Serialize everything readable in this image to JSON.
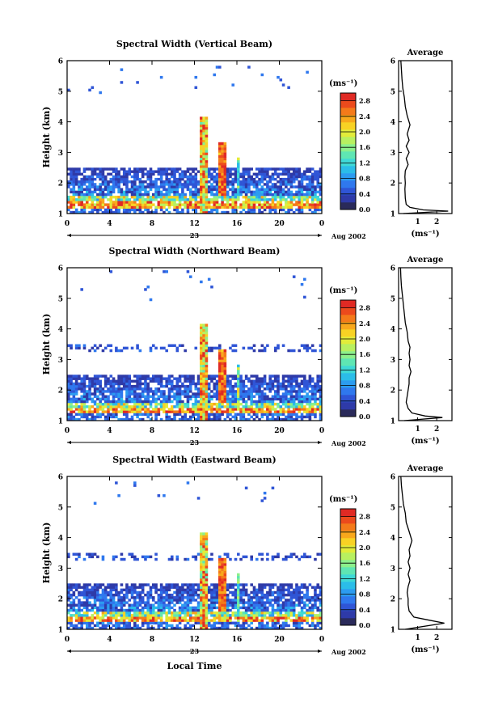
{
  "panels": [
    {
      "title": "Spectral Width (Vertical Beam)",
      "side_title": "Average",
      "xlabel": "",
      "profile": [
        [
          0.25,
          1.0
        ],
        [
          2.6,
          1.08
        ],
        [
          1.3,
          1.12
        ],
        [
          0.6,
          1.2
        ],
        [
          0.4,
          1.3
        ],
        [
          0.35,
          1.5
        ],
        [
          0.33,
          1.8
        ],
        [
          0.35,
          2.0
        ],
        [
          0.33,
          2.2
        ],
        [
          0.35,
          2.4
        ],
        [
          0.5,
          2.6
        ],
        [
          0.4,
          2.8
        ],
        [
          0.55,
          3.0
        ],
        [
          0.4,
          3.2
        ],
        [
          0.55,
          3.4
        ],
        [
          0.45,
          3.6
        ],
        [
          0.6,
          3.9
        ],
        [
          0.45,
          4.2
        ],
        [
          0.35,
          4.5
        ],
        [
          0.3,
          4.8
        ],
        [
          0.22,
          5.1
        ],
        [
          0.18,
          5.4
        ],
        [
          0.15,
          5.7
        ],
        [
          0.12,
          6.0
        ]
      ]
    },
    {
      "title": "Spectral Width (Northward Beam)",
      "side_title": "Average",
      "xlabel": "",
      "profile": [
        [
          0.3,
          1.0
        ],
        [
          2.3,
          1.1
        ],
        [
          1.4,
          1.15
        ],
        [
          0.7,
          1.25
        ],
        [
          0.5,
          1.4
        ],
        [
          0.4,
          1.6
        ],
        [
          0.45,
          1.8
        ],
        [
          0.5,
          2.0
        ],
        [
          0.55,
          2.2
        ],
        [
          0.55,
          2.4
        ],
        [
          0.65,
          2.6
        ],
        [
          0.55,
          2.8
        ],
        [
          0.6,
          3.0
        ],
        [
          0.55,
          3.2
        ],
        [
          0.6,
          3.4
        ],
        [
          0.5,
          3.6
        ],
        [
          0.45,
          3.9
        ],
        [
          0.35,
          4.2
        ],
        [
          0.3,
          4.5
        ],
        [
          0.25,
          4.8
        ],
        [
          0.2,
          5.1
        ],
        [
          0.15,
          5.4
        ],
        [
          0.12,
          5.7
        ],
        [
          0.1,
          6.0
        ]
      ]
    },
    {
      "title": "Spectral Width (Eastward Beam)",
      "side_title": "Average",
      "xlabel": "Local Time",
      "profile": [
        [
          0.35,
          1.0
        ],
        [
          2.4,
          1.2
        ],
        [
          1.6,
          1.3
        ],
        [
          0.8,
          1.4
        ],
        [
          0.55,
          1.6
        ],
        [
          0.5,
          1.8
        ],
        [
          0.5,
          2.0
        ],
        [
          0.45,
          2.2
        ],
        [
          0.5,
          2.4
        ],
        [
          0.6,
          2.6
        ],
        [
          0.5,
          2.8
        ],
        [
          0.6,
          3.0
        ],
        [
          0.5,
          3.2
        ],
        [
          0.6,
          3.4
        ],
        [
          0.55,
          3.6
        ],
        [
          0.7,
          3.9
        ],
        [
          0.55,
          4.2
        ],
        [
          0.4,
          4.5
        ],
        [
          0.35,
          4.8
        ],
        [
          0.25,
          5.1
        ],
        [
          0.2,
          5.4
        ],
        [
          0.15,
          5.7
        ],
        [
          0.12,
          6.0
        ]
      ]
    }
  ],
  "chart_data": [
    {
      "type": "heatmap",
      "title": "Spectral Width (Vertical Beam)",
      "xlabel": "",
      "ylabel": "Height (km)",
      "xlim": [
        0,
        24
      ],
      "ylim": [
        1,
        6
      ],
      "xticks": [
        "0",
        "4",
        "8",
        "12",
        "16",
        "20",
        "0"
      ],
      "yticks": [
        "1",
        "2",
        "3",
        "4",
        "5",
        "6"
      ],
      "day_label": "23",
      "date_label": "Aug 2002",
      "colorbar": {
        "unit": "(ms⁻¹)",
        "range": [
          0,
          3.0
        ],
        "ticks": [
          "0.0",
          "0.4",
          "0.8",
          "1.2",
          "1.6",
          "2.0",
          "2.4",
          "2.8"
        ]
      },
      "profile_xticks": [
        "1",
        "2"
      ],
      "profile_xlabel": "(ms⁻¹)"
    },
    {
      "type": "heatmap",
      "title": "Spectral Width (Northward Beam)",
      "xlabel": "",
      "ylabel": "Height (km)",
      "xlim": [
        0,
        24
      ],
      "ylim": [
        1,
        6
      ],
      "xticks": [
        "0",
        "4",
        "8",
        "12",
        "16",
        "20",
        "0"
      ],
      "yticks": [
        "1",
        "2",
        "3",
        "4",
        "5",
        "6"
      ],
      "day_label": "23",
      "date_label": "Aug 2002",
      "colorbar": {
        "unit": "(ms⁻¹)",
        "range": [
          0,
          3.0
        ],
        "ticks": [
          "0.0",
          "0.4",
          "0.8",
          "1.2",
          "1.6",
          "2.0",
          "2.4",
          "2.8"
        ]
      },
      "profile_xticks": [
        "1",
        "2"
      ],
      "profile_xlabel": "(ms⁻¹)"
    },
    {
      "type": "heatmap",
      "title": "Spectral Width (Eastward Beam)",
      "xlabel": "Local Time",
      "ylabel": "Height (km)",
      "xlim": [
        0,
        24
      ],
      "ylim": [
        1,
        6
      ],
      "xticks": [
        "0",
        "4",
        "8",
        "12",
        "16",
        "20",
        "0"
      ],
      "yticks": [
        "1",
        "2",
        "3",
        "4",
        "5",
        "6"
      ],
      "day_label": "23",
      "date_label": "Aug 2002",
      "colorbar": {
        "unit": "(ms⁻¹)",
        "range": [
          0,
          3.0
        ],
        "ticks": [
          "0.0",
          "0.4",
          "0.8",
          "1.2",
          "1.6",
          "2.0",
          "2.4",
          "2.8"
        ]
      },
      "profile_xticks": [
        "1",
        "2"
      ],
      "profile_xlabel": "(ms⁻¹)"
    }
  ],
  "colors": {
    "colormap": [
      "#2a2a5a",
      "#2e3aa8",
      "#2f55d6",
      "#2f78ee",
      "#2c9cf0",
      "#2bbde8",
      "#3fd9d6",
      "#5fe6b3",
      "#8cf08c",
      "#b8f060",
      "#e2ec3a",
      "#f8d224",
      "#f8a81c",
      "#f47a1a",
      "#ec4a1c",
      "#e02a24"
    ]
  }
}
